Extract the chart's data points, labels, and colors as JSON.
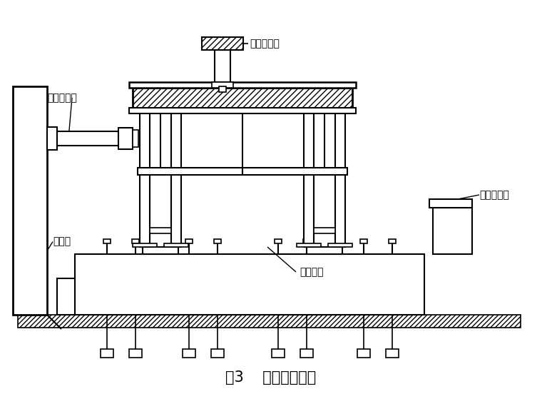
{
  "title": "图3    试验加载装置",
  "title_fontsize": 15,
  "bg_color": "#ffffff",
  "labels": {
    "vertical_jack": "竖向千斤顶",
    "horizontal_jack": "水平千斤顶",
    "reaction_wall": "反力墙",
    "anchor_bolt": "地脚螺栓",
    "horizontal_stop": "水平限位架"
  }
}
